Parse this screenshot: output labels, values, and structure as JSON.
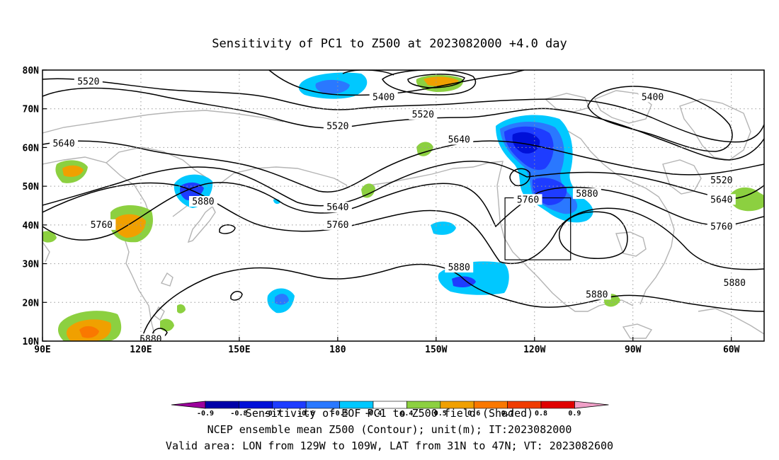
{
  "title": "Sensitivity of PC1 to Z500 at 2023082000 +4.0 day",
  "map": {
    "lon_range": [
      90,
      310
    ],
    "lat_range": [
      10,
      80
    ],
    "x_ticks": [
      {
        "lon": 90,
        "label": "90E"
      },
      {
        "lon": 120,
        "label": "120E"
      },
      {
        "lon": 150,
        "label": "150E"
      },
      {
        "lon": 180,
        "label": "180"
      },
      {
        "lon": 210,
        "label": "150W"
      },
      {
        "lon": 240,
        "label": "120W"
      },
      {
        "lon": 270,
        "label": "90W"
      },
      {
        "lon": 300,
        "label": "60W"
      }
    ],
    "y_ticks": [
      {
        "lat": 10,
        "label": "10N"
      },
      {
        "lat": 20,
        "label": "20N"
      },
      {
        "lat": 30,
        "label": "30N"
      },
      {
        "lat": 40,
        "label": "40N"
      },
      {
        "lat": 50,
        "label": "50N"
      },
      {
        "lat": 60,
        "label": "60N"
      },
      {
        "lat": 70,
        "label": "70N"
      },
      {
        "lat": 80,
        "label": "80N"
      }
    ],
    "grid": "dotted",
    "valid_box": {
      "lon_min": 231,
      "lon_max": 251,
      "lat_min": 31,
      "lat_max": 47
    }
  },
  "contour_labels": [
    {
      "text": "5520",
      "lon": 104,
      "lat": 77
    },
    {
      "text": "5400",
      "lon": 194,
      "lat": 73
    },
    {
      "text": "5520",
      "lon": 206,
      "lat": 68.5
    },
    {
      "text": "5400",
      "lon": 276,
      "lat": 73
    },
    {
      "text": "5520",
      "lon": 180,
      "lat": 65.5
    },
    {
      "text": "5640",
      "lon": 217,
      "lat": 62
    },
    {
      "text": "5640",
      "lon": 96.5,
      "lat": 61
    },
    {
      "text": "5520",
      "lon": 297,
      "lat": 51.5
    },
    {
      "text": "5640",
      "lon": 297,
      "lat": 46.5
    },
    {
      "text": "5760",
      "lon": 297,
      "lat": 39.5
    },
    {
      "text": "5640",
      "lon": 180,
      "lat": 44.5
    },
    {
      "text": "5760",
      "lon": 180,
      "lat": 40
    },
    {
      "text": "5880",
      "lon": 139,
      "lat": 46
    },
    {
      "text": "5760",
      "lon": 108,
      "lat": 40
    },
    {
      "text": "5760",
      "lon": 238,
      "lat": 46.5
    },
    {
      "text": "5880",
      "lon": 256,
      "lat": 48
    },
    {
      "text": "5880",
      "lon": 217,
      "lat": 29
    },
    {
      "text": "5880",
      "lon": 259,
      "lat": 22
    },
    {
      "text": "5880",
      "lon": 301,
      "lat": 25
    },
    {
      "text": "5880",
      "lon": 123,
      "lat": 10.5
    }
  ],
  "shading": {
    "colors": {
      "c-0.9": "#9c009c",
      "c-0.8": "#0000a8",
      "c-0.7": "#0010d8",
      "c-0.6": "#1e3cff",
      "c-0.5": "#2a78ff",
      "c-0.4": "#00c8ff",
      "c0.4": "#8cd040",
      "c0.5": "#f0a000",
      "c0.6": "#fa7800",
      "c0.7": "#f03c00",
      "c0.8": "#e00000",
      "c0.9": "#f0a0c8"
    }
  },
  "colorbar": {
    "labels": [
      "-0.9",
      "-0.8",
      "-0.7",
      "-0.6",
      "-0.5",
      "-0.4",
      "0.4",
      "0.5",
      "0.6",
      "0.7",
      "0.8",
      "0.9"
    ],
    "colors": [
      "#9c009c",
      "#0000a8",
      "#0010d8",
      "#1e3cff",
      "#2a78ff",
      "#00c8ff",
      "#ffffff",
      "#8cd040",
      "#f0a000",
      "#fa7800",
      "#f03c00",
      "#e00000",
      "#f0a0c8"
    ]
  },
  "footer": {
    "line1": "Sensitivity of EOF PC1 to Z500 field (Shaded)",
    "line2": "NCEP ensemble mean Z500 (Contour); unit(m); IT:2023082000",
    "line3": "Valid area: LON from 129W to 109W, LAT from 31N to 47N; VT: 2023082600"
  }
}
